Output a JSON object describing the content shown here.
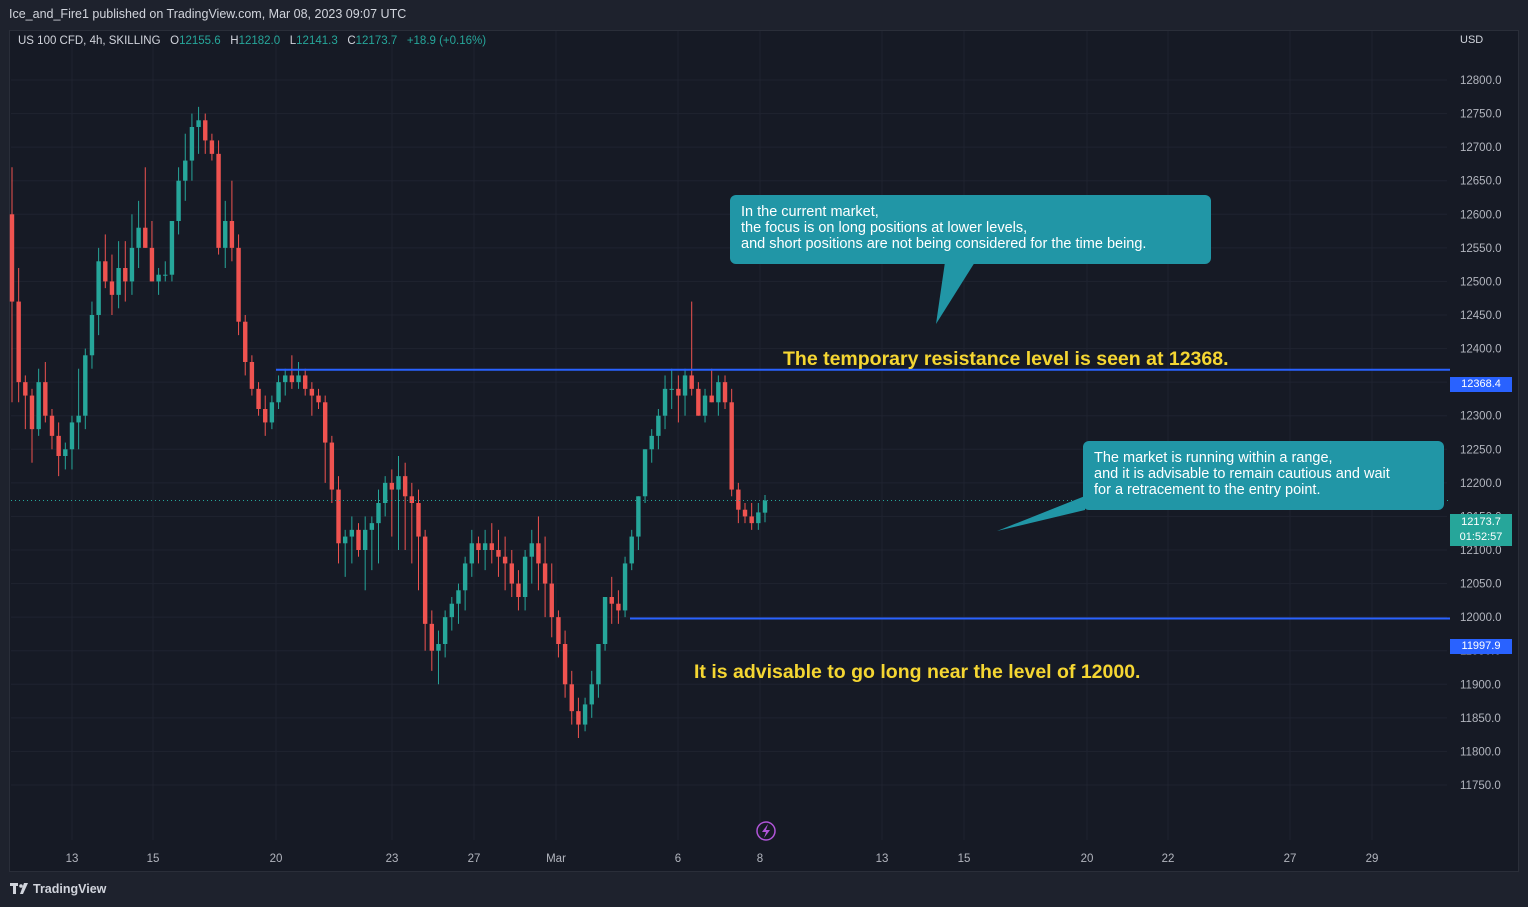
{
  "header": {
    "publisher_line": "Ice_and_Fire1 published on TradingView.com, Mar 08, 2023 09:07 UTC"
  },
  "legend": {
    "symbol": "US 100 CFD, 4h, SKILLING",
    "o_label": "O",
    "o_value": "12155.6",
    "h_label": "H",
    "h_value": "12182.0",
    "l_label": "L",
    "l_value": "12141.3",
    "c_label": "C",
    "c_value": "12173.7",
    "change": "+18.9 (+0.16%)"
  },
  "currency": "USD",
  "footer": {
    "brand": "TradingView"
  },
  "annotations": {
    "callout_top": [
      "In the current market,",
      "the focus is on long positions at lower levels,",
      "and short positions are not being considered for the time being."
    ],
    "callout_right": [
      "The market is running within a range,",
      "and it is advisable to remain cautious and wait",
      "for a retracement to the entry point."
    ],
    "resistance_text": "The temporary resistance level is seen at 12368.",
    "support_text": "It is advisable to go long near the level of 12000."
  },
  "price_tags": {
    "resistance": "12368.4",
    "support": "11997.9",
    "current_price": "12173.7",
    "countdown": "01:52:57"
  },
  "colors": {
    "background": "#161a25",
    "up": "#26a69a",
    "down": "#ef5350",
    "level_line": "#2962ff",
    "callout": "#2196a6",
    "headline": "#f5d632"
  },
  "chart_data": {
    "type": "candlestick",
    "symbol": "US 100 CFD",
    "interval": "4h",
    "ylim": [
      11725,
      12850
    ],
    "y_ticks": [
      "11750.0",
      "11800.0",
      "11850.0",
      "11900.0",
      "11950.0",
      "12000.0",
      "12050.0",
      "12100.0",
      "12150.0",
      "12200.0",
      "12250.0",
      "12300.0",
      "12350.0",
      "12400.0",
      "12450.0",
      "12500.0",
      "12550.0",
      "12600.0",
      "12650.0",
      "12700.0",
      "12750.0",
      "12800.0"
    ],
    "x_ticks": [
      "13",
      "15",
      "20",
      "23",
      "27",
      "Mar",
      "6",
      "8",
      "13",
      "15",
      "20",
      "22",
      "27",
      "29"
    ],
    "horizontal_levels": [
      12368.4,
      11997.9
    ],
    "last_price": 12173.7,
    "candles": [
      [
        12600,
        12670,
        12320,
        12470
      ],
      [
        12470,
        12520,
        12320,
        12350
      ],
      [
        12350,
        12360,
        12280,
        12330
      ],
      [
        12330,
        12340,
        12230,
        12280
      ],
      [
        12280,
        12370,
        12270,
        12350
      ],
      [
        12350,
        12380,
        12290,
        12300
      ],
      [
        12300,
        12310,
        12250,
        12270
      ],
      [
        12270,
        12290,
        12210,
        12240
      ],
      [
        12240,
        12260,
        12220,
        12250
      ],
      [
        12250,
        12300,
        12220,
        12290
      ],
      [
        12290,
        12370,
        12250,
        12300
      ],
      [
        12300,
        12400,
        12280,
        12390
      ],
      [
        12390,
        12470,
        12370,
        12450
      ],
      [
        12450,
        12550,
        12420,
        12530
      ],
      [
        12530,
        12570,
        12490,
        12500
      ],
      [
        12500,
        12540,
        12450,
        12480
      ],
      [
        12480,
        12560,
        12460,
        12520
      ],
      [
        12520,
        12560,
        12470,
        12500
      ],
      [
        12500,
        12600,
        12480,
        12550
      ],
      [
        12550,
        12620,
        12520,
        12580
      ],
      [
        12580,
        12670,
        12550,
        12550
      ],
      [
        12550,
        12590,
        12500,
        12500
      ],
      [
        12500,
        12520,
        12480,
        12510
      ],
      [
        12510,
        12530,
        12500,
        12510
      ],
      [
        12510,
        12580,
        12500,
        12590
      ],
      [
        12590,
        12670,
        12570,
        12650
      ],
      [
        12650,
        12720,
        12620,
        12680
      ],
      [
        12680,
        12750,
        12650,
        12730
      ],
      [
        12730,
        12760,
        12690,
        12740
      ],
      [
        12740,
        12750,
        12690,
        12710
      ],
      [
        12710,
        12720,
        12680,
        12690
      ],
      [
        12690,
        12710,
        12540,
        12550
      ],
      [
        12550,
        12620,
        12520,
        12590
      ],
      [
        12590,
        12650,
        12530,
        12550
      ],
      [
        12550,
        12570,
        12420,
        12440
      ],
      [
        12440,
        12450,
        12360,
        12380
      ],
      [
        12380,
        12390,
        12330,
        12340
      ],
      [
        12340,
        12350,
        12300,
        12310
      ],
      [
        12310,
        12330,
        12270,
        12290
      ],
      [
        12290,
        12330,
        12280,
        12320
      ],
      [
        12320,
        12360,
        12310,
        12350
      ],
      [
        12350,
        12370,
        12330,
        12360
      ],
      [
        12360,
        12390,
        12340,
        12350
      ],
      [
        12350,
        12380,
        12340,
        12360
      ],
      [
        12360,
        12370,
        12330,
        12340
      ],
      [
        12340,
        12350,
        12300,
        12330
      ],
      [
        12330,
        12340,
        12310,
        12320
      ],
      [
        12320,
        12330,
        12200,
        12260
      ],
      [
        12260,
        12270,
        12170,
        12190
      ],
      [
        12190,
        12210,
        12080,
        12110
      ],
      [
        12110,
        12130,
        12060,
        12120
      ],
      [
        12120,
        12150,
        12080,
        12130
      ],
      [
        12130,
        12140,
        12090,
        12100
      ],
      [
        12100,
        12150,
        12040,
        12130
      ],
      [
        12130,
        12150,
        12070,
        12140
      ],
      [
        12140,
        12190,
        12080,
        12170
      ],
      [
        12170,
        12210,
        12150,
        12200
      ],
      [
        12200,
        12220,
        12120,
        12190
      ],
      [
        12190,
        12240,
        12100,
        12210
      ],
      [
        12210,
        12230,
        12100,
        12180
      ],
      [
        12180,
        12200,
        12080,
        12170
      ],
      [
        12170,
        12190,
        12040,
        12120
      ],
      [
        12120,
        12130,
        11950,
        11990
      ],
      [
        11990,
        12010,
        11920,
        11950
      ],
      [
        11950,
        11980,
        11900,
        11960
      ],
      [
        11960,
        12010,
        11940,
        12000
      ],
      [
        12000,
        12030,
        11980,
        12020
      ],
      [
        12020,
        12050,
        11990,
        12040
      ],
      [
        12040,
        12090,
        12010,
        12080
      ],
      [
        12080,
        12130,
        12060,
        12110
      ],
      [
        12110,
        12120,
        12080,
        12100
      ],
      [
        12100,
        12130,
        12070,
        12110
      ],
      [
        12110,
        12140,
        12080,
        12100
      ],
      [
        12100,
        12130,
        12060,
        12090
      ],
      [
        12090,
        12120,
        12040,
        12080
      ],
      [
        12080,
        12100,
        12030,
        12050
      ],
      [
        12050,
        12070,
        12010,
        12030
      ],
      [
        12030,
        12100,
        12010,
        12090
      ],
      [
        12090,
        12130,
        12050,
        12110
      ],
      [
        12110,
        12150,
        12040,
        12080
      ],
      [
        12080,
        12120,
        12000,
        12050
      ],
      [
        12050,
        12080,
        11970,
        12000
      ],
      [
        12000,
        12010,
        11940,
        11960
      ],
      [
        11960,
        11980,
        11880,
        11900
      ],
      [
        11900,
        11920,
        11840,
        11860
      ],
      [
        11860,
        11880,
        11820,
        11840
      ],
      [
        11840,
        11880,
        11830,
        11870
      ],
      [
        11870,
        11920,
        11850,
        11900
      ],
      [
        11900,
        11960,
        11880,
        11960
      ],
      [
        11960,
        12030,
        11950,
        12030
      ],
      [
        12030,
        12060,
        11990,
        12020
      ],
      [
        12020,
        12040,
        11990,
        12010
      ],
      [
        12010,
        12090,
        12000,
        12080
      ],
      [
        12080,
        12130,
        12070,
        12120
      ],
      [
        12120,
        12180,
        12100,
        12180
      ],
      [
        12180,
        12250,
        12170,
        12250
      ],
      [
        12250,
        12280,
        12230,
        12270
      ],
      [
        12270,
        12310,
        12250,
        12300
      ],
      [
        12300,
        12360,
        12280,
        12340
      ],
      [
        12340,
        12370,
        12310,
        12340
      ],
      [
        12340,
        12360,
        12290,
        12330
      ],
      [
        12330,
        12370,
        12300,
        12360
      ],
      [
        12360,
        12470,
        12330,
        12340
      ],
      [
        12340,
        12350,
        12300,
        12300
      ],
      [
        12300,
        12340,
        12290,
        12330
      ],
      [
        12330,
        12370,
        12320,
        12320
      ],
      [
        12320,
        12360,
        12300,
        12350
      ],
      [
        12350,
        12360,
        12310,
        12320
      ],
      [
        12320,
        12340,
        12180,
        12190
      ],
      [
        12190,
        12200,
        12140,
        12160
      ],
      [
        12160,
        12170,
        12140,
        12150
      ],
      [
        12150,
        12170,
        12130,
        12140
      ],
      [
        12140,
        12170,
        12130,
        12156
      ],
      [
        12155.6,
        12182.0,
        12141.3,
        12173.7
      ]
    ]
  }
}
